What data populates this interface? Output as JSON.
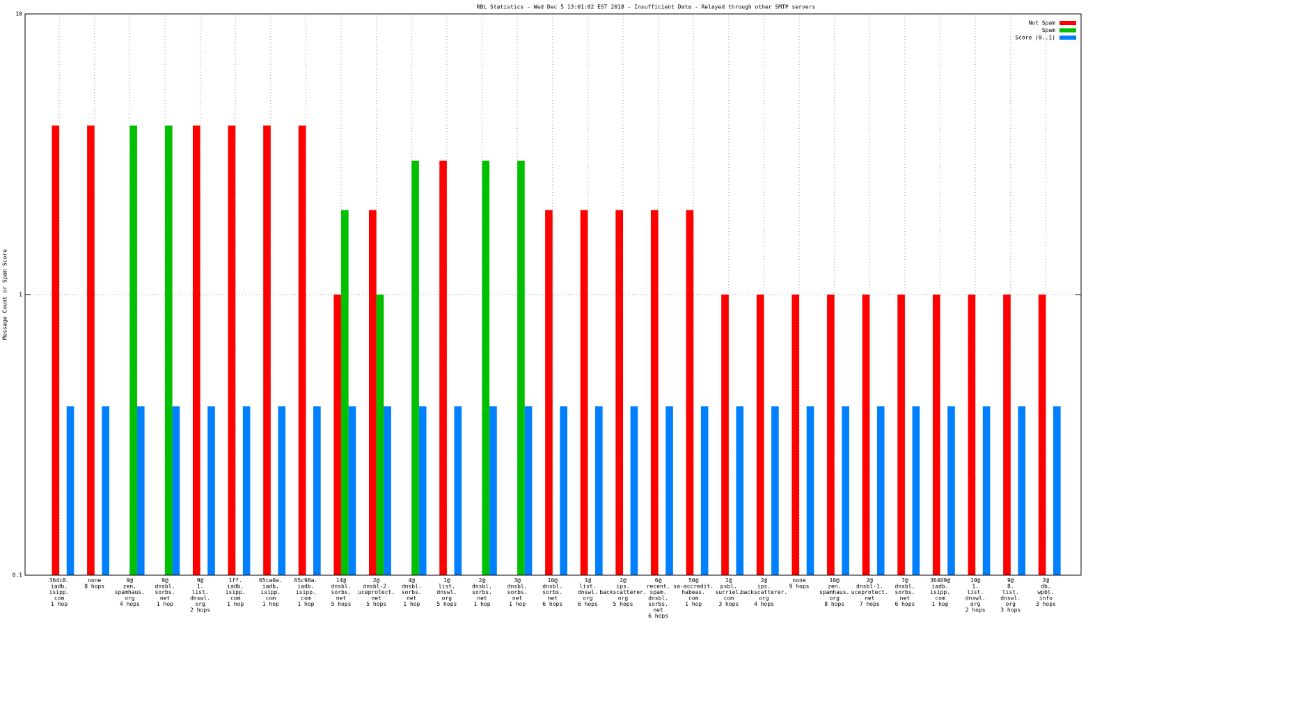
{
  "chart_data": {
    "type": "bar",
    "title": "RBL Statistics - Wed Dec  5 13:01:02 EST 2018 - Insufficient Data - Relayed through other SMTP servers",
    "y_label": "Message Count or Spam Score",
    "log_scale": true,
    "grid": true,
    "legend": "top-right",
    "ylim": [
      0.1,
      10
    ],
    "yticks": [
      0.1,
      1,
      10
    ],
    "categories": [
      "364c8.\niadb.\nisipp.\ncom\n1 hop",
      "none\n8 hops",
      "9@\nzen.\nspamhaus.\norg\n4 hops",
      "9@\ndnsbl.\nsorbs.\nnet\n1 hop",
      "9@\n1.\nlist.\ndnswl.\norg\n2 hops",
      "1ff.\niadb.\nisipp.\ncom\n1 hop",
      "65ca0a.\niadb.\nisipp.\ncom\n1 hop",
      "65c98a.\niadb.\nisipp.\ncom\n1 hop",
      "14@\ndnsbl.\nsorbs.\nnet\n5 hops",
      "2@\ndnsbl-2.\nuceprotect.\nnet\n5 hops",
      "4@\ndnsbl.\nsorbs.\nnet\n1 hop",
      "1@\nlist.\ndnswl.\norg\n5 hops",
      "2@\ndnsbl.\nsorbs.\nnet\n1 hop",
      "3@\ndnsbl.\nsorbs.\nnet\n1 hop",
      "10@\ndnsbl.\nsorbs.\nnet\n6 hops",
      "1@\nlist.\ndnswl.\norg\n6 hops",
      "2@\nips.\nbackscatterer.\norg\n5 hops",
      "6@\nrecent.\nspam.\ndnsbl.\nsorbs.\nnet\n6 hops",
      "50@\nsa-accredit.\nhabeas.\ncom\n1 hop",
      "2@\npsbl.\nsurriel.\ncom\n3 hops",
      "2@\nips.\nbackscatterer.\norg\n4 hops",
      "none\n9 hops",
      "10@\nzen.\nspamhaus.\norg\n8 hops",
      "2@\ndnsbl-1.\nuceprotect.\nnet\n7 hops",
      "7@\ndnsbl.\nsorbs.\nnet\n6 hops",
      "36409@\niadb.\nisipp.\ncom\n1 hop",
      "10@\n1.\nlist.\ndnswl.\norg\n2 hops",
      "9@\n8.\nlist.\ndnswl.\norg\n3 hops",
      "2@\ndb.\nwpbl.\ninfo\n3 hops"
    ],
    "series": [
      {
        "name": "Not Spam",
        "color": "#ff0000",
        "values": [
          4,
          4,
          null,
          null,
          4,
          4,
          4,
          4,
          1,
          2,
          null,
          3,
          null,
          null,
          2,
          2,
          2,
          2,
          2,
          1,
          1,
          1,
          1,
          1,
          1,
          1,
          1,
          1,
          1
        ]
      },
      {
        "name": "Spam",
        "color": "#00c000",
        "values": [
          null,
          null,
          4,
          4,
          null,
          null,
          null,
          null,
          2,
          1,
          3,
          null,
          3,
          3,
          null,
          null,
          null,
          null,
          null,
          null,
          null,
          null,
          null,
          null,
          null,
          null,
          null,
          null,
          null
        ]
      },
      {
        "name": "Score (0..1)",
        "color": "#0080ff",
        "values": [
          0.4,
          0.4,
          0.4,
          0.4,
          0.4,
          0.4,
          0.4,
          0.4,
          0.4,
          0.4,
          0.4,
          0.4,
          0.4,
          0.4,
          0.4,
          0.4,
          0.4,
          0.4,
          0.4,
          0.4,
          0.4,
          0.4,
          0.4,
          0.4,
          0.4,
          0.4,
          0.4,
          0.4,
          0.4
        ]
      }
    ]
  }
}
